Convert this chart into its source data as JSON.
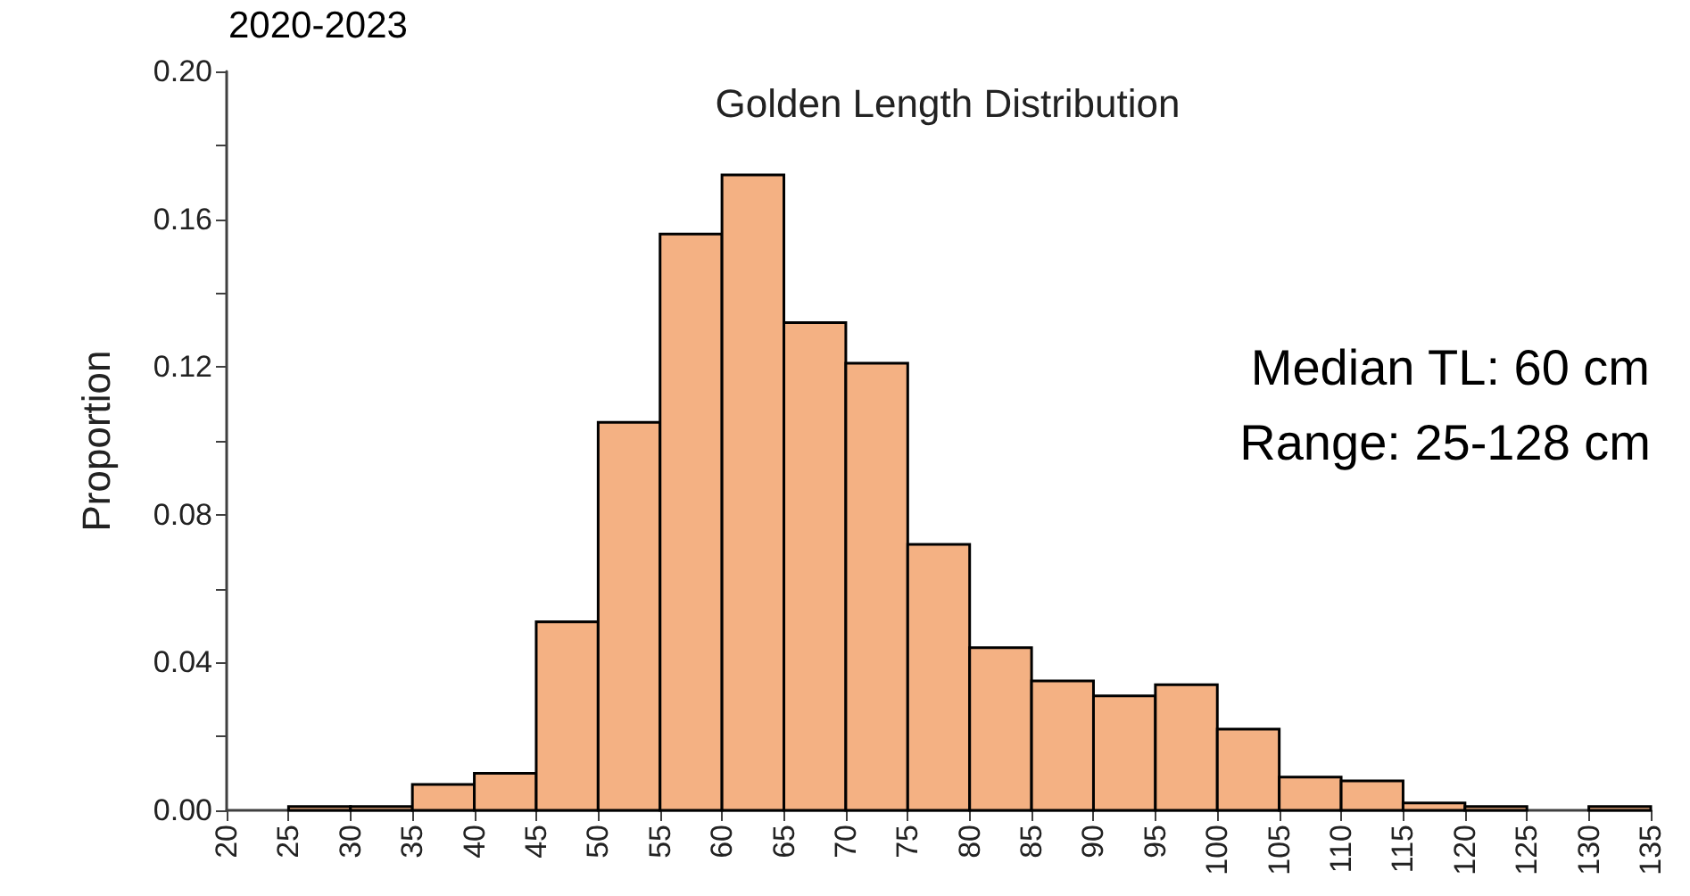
{
  "chart_data": {
    "type": "histogram",
    "title": "Golden Length Distribution",
    "subtitle": "2020-2023",
    "ylabel": "Proportion",
    "annotations": [
      "Median TL: 60 cm",
      "Range: 25-128 cm"
    ],
    "bins": [
      20,
      25,
      30,
      35,
      40,
      45,
      50,
      55,
      60,
      65,
      70,
      75,
      80,
      85,
      90,
      95,
      100,
      105,
      110,
      115,
      120,
      125,
      130,
      135
    ],
    "values": [
      0,
      0.001,
      0.001,
      0.007,
      0.01,
      0.051,
      0.105,
      0.156,
      0.172,
      0.132,
      0.121,
      0.072,
      0.044,
      0.035,
      0.031,
      0.034,
      0.022,
      0.009,
      0.008,
      0.002,
      0.001,
      0,
      0.001
    ],
    "color": "#f4b183",
    "xlim": [
      20,
      135
    ],
    "xticks": [
      20,
      25,
      30,
      35,
      40,
      45,
      50,
      55,
      60,
      65,
      70,
      75,
      80,
      85,
      90,
      95,
      100,
      105,
      110,
      115,
      120,
      125,
      130,
      135
    ],
    "ylim": [
      0,
      0.2
    ],
    "yticks": [
      {
        "value": 0,
        "label": "0.00"
      },
      {
        "value": 0.02,
        "label": null
      },
      {
        "value": 0.04,
        "label": "0.04"
      },
      {
        "value": 0.06,
        "label": null
      },
      {
        "value": 0.08,
        "label": "0.08"
      },
      {
        "value": 0.1,
        "label": null
      },
      {
        "value": 0.12,
        "label": "0.12"
      },
      {
        "value": 0.14,
        "label": null
      },
      {
        "value": 0.16,
        "label": "0.16"
      },
      {
        "value": 0.18,
        "label": null
      },
      {
        "value": 0.2,
        "label": "0.20"
      }
    ],
    "grid": false,
    "legend": false
  }
}
